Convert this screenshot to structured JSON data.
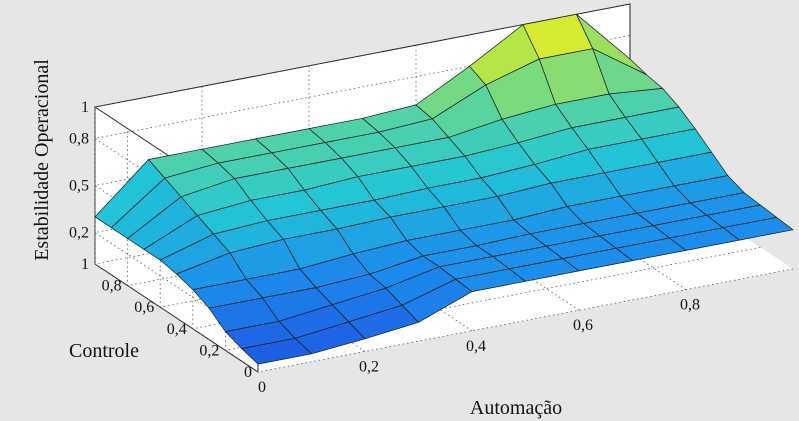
{
  "chart_data": {
    "type": "surface",
    "title": "",
    "xlabel": "Automação",
    "ylabel": "Controle",
    "zlabel": "Estabilidade Operacional",
    "x": [
      0,
      0.1,
      0.2,
      0.3,
      0.4,
      0.5,
      0.6,
      0.7,
      0.8,
      0.9,
      1
    ],
    "y": [
      0,
      0.1,
      0.2,
      0.3,
      0.4,
      0.5,
      0.6,
      0.7,
      0.8,
      0.9,
      1
    ],
    "z": [
      [
        0.05,
        0.05,
        0.08,
        0.12,
        0.25,
        0.25,
        0.25,
        0.25,
        0.25,
        0.25,
        0.25
      ],
      [
        0.08,
        0.08,
        0.12,
        0.16,
        0.26,
        0.26,
        0.26,
        0.26,
        0.26,
        0.26,
        0.26
      ],
      [
        0.12,
        0.12,
        0.16,
        0.2,
        0.27,
        0.27,
        0.27,
        0.27,
        0.27,
        0.27,
        0.27
      ],
      [
        0.2,
        0.2,
        0.2,
        0.22,
        0.27,
        0.27,
        0.28,
        0.28,
        0.28,
        0.28,
        0.28
      ],
      [
        0.25,
        0.25,
        0.25,
        0.28,
        0.3,
        0.3,
        0.3,
        0.32,
        0.32,
        0.32,
        0.32
      ],
      [
        0.28,
        0.35,
        0.37,
        0.37,
        0.38,
        0.38,
        0.38,
        0.4,
        0.4,
        0.4,
        0.4
      ],
      [
        0.3,
        0.4,
        0.42,
        0.42,
        0.42,
        0.43,
        0.43,
        0.45,
        0.48,
        0.48,
        0.48
      ],
      [
        0.3,
        0.45,
        0.48,
        0.48,
        0.5,
        0.5,
        0.5,
        0.52,
        0.55,
        0.55,
        0.55
      ],
      [
        0.3,
        0.5,
        0.55,
        0.55,
        0.55,
        0.55,
        0.55,
        0.6,
        0.63,
        0.63,
        0.6
      ],
      [
        0.3,
        0.55,
        0.58,
        0.58,
        0.58,
        0.58,
        0.6,
        0.75,
        0.85,
        0.85,
        0.62
      ],
      [
        0.3,
        0.6,
        0.6,
        0.6,
        0.6,
        0.6,
        0.62,
        0.8,
        1.0,
        1.0,
        0.65
      ]
    ],
    "xticks": [
      "0",
      "0,2",
      "0,4",
      "0,6",
      "0,8"
    ],
    "xtick_values": [
      0,
      0.2,
      0.4,
      0.6,
      0.8
    ],
    "yticks": [
      "0",
      "0,2",
      "0,4",
      "0,6",
      "0,8",
      "1"
    ],
    "ytick_values": [
      0,
      0.2,
      0.4,
      0.6,
      0.8,
      1
    ],
    "zticks": [
      "0,2",
      "0,5",
      "0,8",
      "1"
    ],
    "ztick_values": [
      0.2,
      0.5,
      0.8,
      1
    ],
    "xlim": [
      0,
      1
    ],
    "ylim": [
      0,
      1
    ],
    "zlim": [
      0,
      1
    ],
    "grid": true,
    "colormap": "parula",
    "colors": {
      "background": "#e6e6e6",
      "axes_face": "#ffffff",
      "edge": "#1a1a1a",
      "low": "#1f50e0",
      "mid": "#22c6d6",
      "high": "#f2f21c"
    }
  }
}
